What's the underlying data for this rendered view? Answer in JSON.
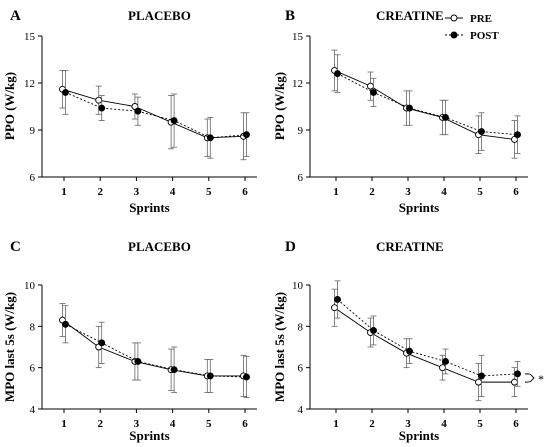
{
  "chart_data": [
    {
      "type": "line",
      "panel_letter": "A",
      "title": "PLACEBO",
      "xlabel": "Sprints",
      "ylabel": "PPO (W/kg)",
      "categories": [
        "1",
        "2",
        "3",
        "4",
        "5",
        "6"
      ],
      "ylim": [
        6,
        15
      ],
      "yticks": [
        "6",
        "9",
        "12",
        "15"
      ],
      "series": [
        {
          "name": "PRE",
          "values": [
            11.6,
            10.9,
            10.5,
            9.5,
            8.5,
            8.6
          ],
          "errors": [
            1.2,
            0.9,
            0.8,
            1.7,
            1.2,
            1.5
          ]
        },
        {
          "name": "POST",
          "values": [
            11.4,
            10.4,
            10.2,
            9.6,
            8.5,
            8.7
          ],
          "errors": [
            1.4,
            0.8,
            0.9,
            1.7,
            1.3,
            1.4
          ]
        }
      ],
      "legend": false,
      "annotation": ""
    },
    {
      "type": "line",
      "panel_letter": "B",
      "title": "CREATINE",
      "xlabel": "Sprints",
      "ylabel": "PPO (W/kg)",
      "categories": [
        "1",
        "2",
        "3",
        "4",
        "5",
        "6"
      ],
      "ylim": [
        6,
        15
      ],
      "yticks": [
        "6",
        "9",
        "12",
        "15"
      ],
      "series": [
        {
          "name": "PRE",
          "values": [
            12.8,
            11.8,
            10.4,
            9.8,
            8.7,
            8.4
          ],
          "errors": [
            1.3,
            0.9,
            1.1,
            1.1,
            1.2,
            1.2
          ]
        },
        {
          "name": "POST",
          "values": [
            12.6,
            11.4,
            10.4,
            9.8,
            8.9,
            8.7
          ],
          "errors": [
            1.2,
            0.9,
            1.1,
            1.1,
            1.2,
            1.2
          ]
        }
      ],
      "legend": true,
      "annotation": ""
    },
    {
      "type": "line",
      "panel_letter": "C",
      "title": "PLACEBO",
      "xlabel": "Sprints",
      "ylabel": "MPO last 5s (W/kg)",
      "categories": [
        "1",
        "2",
        "3",
        "4",
        "5",
        "6"
      ],
      "ylim": [
        4,
        10
      ],
      "yticks": [
        "4",
        "6",
        "8",
        "10"
      ],
      "series": [
        {
          "name": "PRE",
          "values": [
            8.3,
            7.0,
            6.3,
            5.9,
            5.6,
            5.6
          ],
          "errors": [
            0.8,
            1.0,
            0.9,
            1.0,
            0.8,
            1.0
          ]
        },
        {
          "name": "POST",
          "values": [
            8.1,
            7.2,
            6.3,
            5.9,
            5.6,
            5.55
          ],
          "errors": [
            0.9,
            1.0,
            0.9,
            1.1,
            0.8,
            1.0
          ]
        }
      ],
      "legend": false,
      "annotation": ""
    },
    {
      "type": "line",
      "panel_letter": "D",
      "title": "CREATINE",
      "xlabel": "Sprints",
      "ylabel": "MPO last 5s (W/kg)",
      "categories": [
        "1",
        "2",
        "3",
        "4",
        "5",
        "6"
      ],
      "ylim": [
        4,
        10
      ],
      "yticks": [
        "4",
        "6",
        "8",
        "10"
      ],
      "series": [
        {
          "name": "PRE",
          "values": [
            8.9,
            7.7,
            6.7,
            6.0,
            5.3,
            5.3
          ],
          "errors": [
            0.9,
            0.7,
            0.7,
            0.6,
            0.9,
            0.7
          ]
        },
        {
          "name": "POST",
          "values": [
            9.3,
            7.8,
            6.8,
            6.3,
            5.6,
            5.7
          ],
          "errors": [
            0.9,
            0.7,
            0.6,
            0.6,
            1.0,
            0.6
          ]
        }
      ],
      "legend": false,
      "annotation": "*"
    }
  ],
  "legend": {
    "pre_label": "PRE",
    "post_label": "POST"
  },
  "colors": {
    "ink": "#000000",
    "pre_fill": "#ffffff",
    "post_fill": "#000000",
    "error_bar": "#666666"
  }
}
